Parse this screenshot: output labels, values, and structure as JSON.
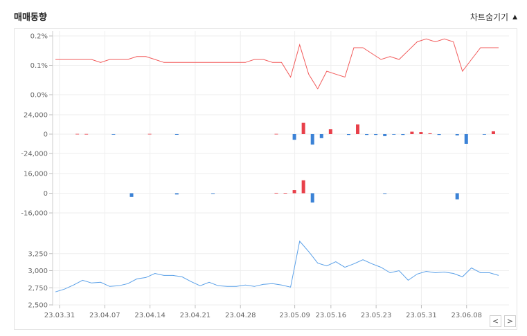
{
  "header": {
    "title": "매매동향",
    "toggle_label": "차트숨기기",
    "toggle_icon": "triangle-up-icon"
  },
  "nav": {
    "prev_icon": "chevron-left-icon",
    "next_icon": "chevron-right-icon",
    "prev_symbol": "<",
    "next_symbol": ">"
  },
  "colors": {
    "red": "#e8404a",
    "blue": "#3b82d6",
    "line_red": "#f25a5a",
    "line_blue": "#5aa0e8",
    "grid": "#eeeeee"
  },
  "chart_data": [
    {
      "type": "line",
      "ylim": [
        0.0,
        0.2
      ],
      "yticks": [
        "0.2%",
        "0.1%",
        "0.0%"
      ],
      "ytick_values": [
        0.2,
        0.1,
        0.0
      ],
      "x_index": [
        0,
        1,
        2,
        3,
        4,
        5,
        6,
        7,
        8,
        9,
        10,
        11,
        12,
        13,
        14,
        15,
        16,
        17,
        18,
        19,
        20,
        21,
        22,
        23,
        24,
        25,
        26,
        27,
        28,
        29,
        30,
        31,
        32,
        33,
        34,
        35,
        36,
        37,
        38,
        39,
        40,
        41,
        42,
        43,
        44,
        45,
        46,
        47,
        48,
        49
      ],
      "values": [
        0.12,
        0.12,
        0.12,
        0.12,
        0.12,
        0.11,
        0.12,
        0.12,
        0.12,
        0.13,
        0.13,
        0.12,
        0.11,
        0.11,
        0.11,
        0.11,
        0.11,
        0.11,
        0.11,
        0.11,
        0.11,
        0.11,
        0.12,
        0.12,
        0.11,
        0.11,
        0.06,
        0.17,
        0.07,
        0.02,
        0.08,
        0.07,
        0.06,
        0.16,
        0.16,
        0.14,
        0.12,
        0.13,
        0.12,
        0.15,
        0.18,
        0.19,
        0.18,
        0.19,
        0.18,
        0.08,
        0.12,
        0.16,
        0.16,
        0.16
      ],
      "color": "#f25a5a"
    },
    {
      "type": "bar",
      "ylim": [
        -24000,
        24000
      ],
      "yticks": [
        "24,000",
        "0",
        "-24,000"
      ],
      "ytick_values": [
        24000,
        0,
        -24000
      ],
      "values": [
        0,
        0,
        300,
        200,
        0,
        0,
        -200,
        0,
        0,
        0,
        300,
        0,
        0,
        -800,
        0,
        0,
        0,
        0,
        0,
        0,
        0,
        0,
        0,
        0,
        300,
        0,
        -7000,
        14000,
        -13000,
        -5000,
        6000,
        0,
        -1000,
        12000,
        -1000,
        -1000,
        -2500,
        -500,
        -1000,
        3000,
        2500,
        1000,
        -1000,
        0,
        -1500,
        -12000,
        0,
        -500,
        3500,
        0
      ]
    },
    {
      "type": "bar",
      "ylim": [
        -16000,
        16000
      ],
      "yticks": [
        "16,000",
        "0",
        "-16,000"
      ],
      "ytick_values": [
        16000,
        0,
        -16000
      ],
      "values": [
        0,
        0,
        0,
        0,
        0,
        0,
        0,
        0,
        -3000,
        0,
        0,
        0,
        0,
        -1000,
        0,
        0,
        0,
        -500,
        0,
        0,
        0,
        0,
        0,
        0,
        300,
        200,
        2500,
        10500,
        -7500,
        0,
        0,
        0,
        0,
        0,
        0,
        0,
        -500,
        0,
        0,
        0,
        0,
        0,
        0,
        0,
        -5000,
        0,
        0,
        0,
        0,
        0
      ]
    },
    {
      "type": "line",
      "ylim": [
        2500,
        3500
      ],
      "yticks": [
        "3,250",
        "3,000",
        "2,750",
        "2,500"
      ],
      "ytick_values": [
        3250,
        3000,
        2750,
        2500
      ],
      "x_ticks": [
        "23.03.31",
        "23.04.07",
        "23.04.14",
        "23.04.21",
        "23.04.28",
        "23.05.09",
        "23.05.16",
        "23.05.23",
        "23.05.31",
        "23.06.08"
      ],
      "x_tick_index": [
        0,
        5,
        10,
        15,
        20,
        26,
        30,
        35,
        40,
        45
      ],
      "values": [
        2690,
        2730,
        2790,
        2860,
        2820,
        2830,
        2770,
        2780,
        2810,
        2880,
        2900,
        2960,
        2930,
        2930,
        2910,
        2840,
        2780,
        2830,
        2780,
        2770,
        2770,
        2790,
        2770,
        2800,
        2810,
        2790,
        2760,
        3430,
        3280,
        3110,
        3070,
        3130,
        3050,
        3100,
        3160,
        3100,
        3050,
        2970,
        3000,
        2860,
        2950,
        2990,
        2970,
        2980,
        2960,
        2910,
        3040,
        2970,
        2970,
        2930
      ],
      "color": "#5aa0e8"
    }
  ]
}
